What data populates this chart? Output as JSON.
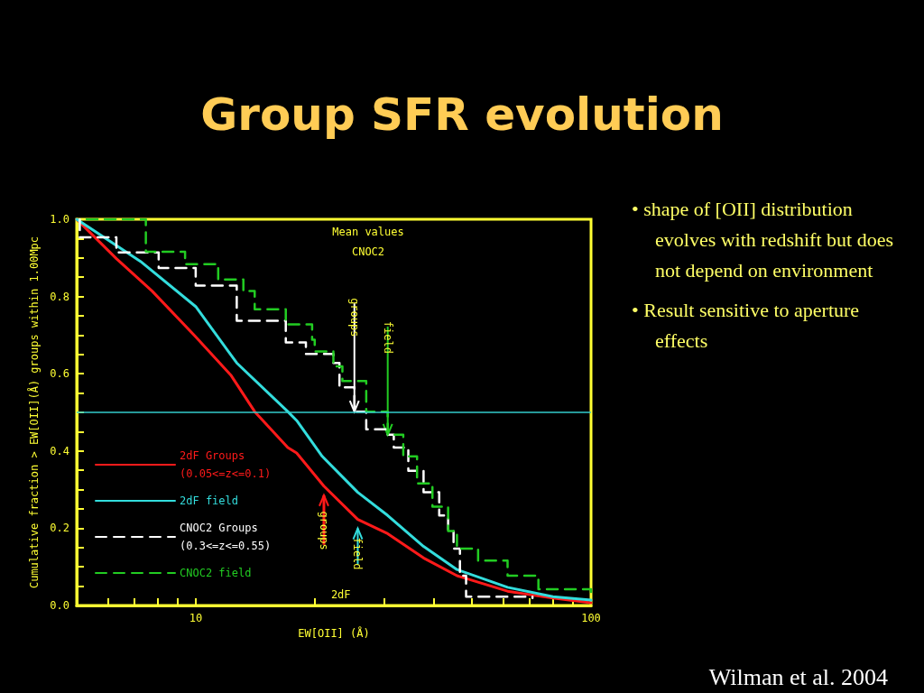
{
  "chart_data": {
    "type": "step",
    "title": "Group SFR evolution",
    "xlabel": "EW[OII] (Å)",
    "ylabel": "Cumulative fraction > EW[OII](Å) groups within 1.00Mpc",
    "log": "x",
    "xlim": [
      5,
      100
    ],
    "ylim": [
      0,
      1
    ],
    "xticks": [
      {
        "value": 6,
        "label": null
      },
      {
        "value": 7,
        "label": null
      },
      {
        "value": 8,
        "label": null
      },
      {
        "value": 9,
        "label": null
      },
      10,
      {
        "value": 20,
        "label": null
      },
      {
        "value": 30,
        "label": null
      },
      {
        "value": 40,
        "label": null
      },
      {
        "value": 50,
        "label": null
      },
      {
        "value": 60,
        "label": null
      },
      {
        "value": 70,
        "label": null
      },
      {
        "value": 80,
        "label": null
      },
      {
        "value": 90,
        "label": null
      },
      100
    ],
    "yticks": [
      {
        "value": 0,
        "label": "0.0"
      },
      {
        "value": 0.05,
        "label": null
      },
      {
        "value": 0.1,
        "label": null
      },
      {
        "value": 0.15,
        "label": null
      },
      0.2,
      {
        "value": 0.25,
        "label": null
      },
      {
        "value": 0.3,
        "label": null
      },
      {
        "value": 0.35,
        "label": null
      },
      0.4,
      {
        "value": 0.45,
        "label": null
      },
      {
        "value": 0.5,
        "label": null
      },
      {
        "value": 0.55,
        "label": null
      },
      0.6,
      {
        "value": 0.65,
        "label": null
      },
      {
        "value": 0.7,
        "label": null
      },
      {
        "value": 0.75,
        "label": null
      },
      0.8,
      {
        "value": 0.85,
        "label": null
      },
      {
        "value": 0.9,
        "label": null
      },
      {
        "value": 0.95,
        "label": null
      },
      {
        "value": 1,
        "label": "1.0"
      }
    ],
    "grid": false,
    "legend": "bottom left",
    "series": [
      {
        "name": "2dF Groups\n(0.05<=z<=0.1)",
        "type": "line",
        "color": "#ff1a1a",
        "line_style": "solid",
        "x": [
          5,
          6.3,
          7.76,
          9.95,
          12.3,
          14.1,
          17.1,
          18.0,
          21.1,
          25.7,
          30.6,
          37.7,
          45.8,
          61.5,
          80.1,
          100
        ],
        "values": [
          1.0,
          0.898,
          0.814,
          0.698,
          0.595,
          0.502,
          0.409,
          0.395,
          0.309,
          0.223,
          0.186,
          0.123,
          0.077,
          0.037,
          0.019,
          0.007
        ]
      },
      {
        "name": "2dF field",
        "type": "line",
        "color": "#33dddd",
        "line_style": "solid",
        "x": [
          5,
          7.25,
          10,
          12.7,
          17.1,
          18.0,
          20.9,
          25.7,
          30.6,
          37.7,
          45.8,
          61.5,
          80.1,
          100
        ],
        "values": [
          1.0,
          0.891,
          0.774,
          0.628,
          0.502,
          0.479,
          0.386,
          0.293,
          0.233,
          0.153,
          0.093,
          0.047,
          0.023,
          0.014
        ]
      },
      {
        "name": "CNOC2 Groups\n(0.3<=z<=0.55)",
        "color": "#ffffff",
        "line_style": "dashed",
        "x": [
          5.09,
          5.09,
          6.3,
          8.06,
          10,
          12.7,
          12.7,
          16.9,
          19.0,
          22.3,
          23.1,
          25.2,
          27.0,
          30.6,
          31.7,
          34.5,
          37.7,
          41.3,
          43.5,
          44.9,
          46.6,
          48.3,
          71.1
        ],
        "values": [
          1.0,
          0.953,
          0.914,
          0.874,
          0.828,
          0.79,
          0.737,
          0.681,
          0.651,
          0.628,
          0.565,
          0.502,
          0.456,
          0.442,
          0.409,
          0.349,
          0.293,
          0.233,
          0.193,
          0.147,
          0.077,
          0.023,
          0.019
        ]
      },
      {
        "name": "CNOC2 field",
        "color": "#22cc22",
        "line_style": "dashed",
        "x": [
          5.3,
          7.48,
          7.48,
          9.4,
          11.4,
          13.2,
          14.1,
          16.9,
          19.7,
          20.0,
          22.3,
          23.5,
          27.0,
          30.6,
          33.5,
          36.3,
          39.7,
          43.5,
          45.8,
          51.8,
          61.5,
          73.6,
          100
        ],
        "values": [
          1.0,
          0.96,
          0.916,
          0.884,
          0.844,
          0.814,
          0.767,
          0.728,
          0.688,
          0.658,
          0.619,
          0.581,
          0.502,
          0.442,
          0.386,
          0.316,
          0.256,
          0.193,
          0.147,
          0.116,
          0.077,
          0.042,
          0.026
        ]
      }
    ],
    "ref_lines": [
      {
        "axis": "y",
        "value": 0.5,
        "color": "#33cccc"
      }
    ],
    "annotations": [
      "Mean values",
      "CNOC2",
      {
        "text": "groups",
        "x": 25.2,
        "y": 0.502
      },
      {
        "text": "field",
        "x": 30.6,
        "y": 0.442
      },
      {
        "text": "groups",
        "x": 21.1,
        "y": 0.309
      },
      {
        "text": "field",
        "x": 25.7,
        "y": 0.223
      },
      "2dF",
      "• shape of [OII] distribution evolves with redshift but does not depend on environment",
      "• Result sensitive to aperture effects",
      "Wilman et al. 2004"
    ]
  }
}
